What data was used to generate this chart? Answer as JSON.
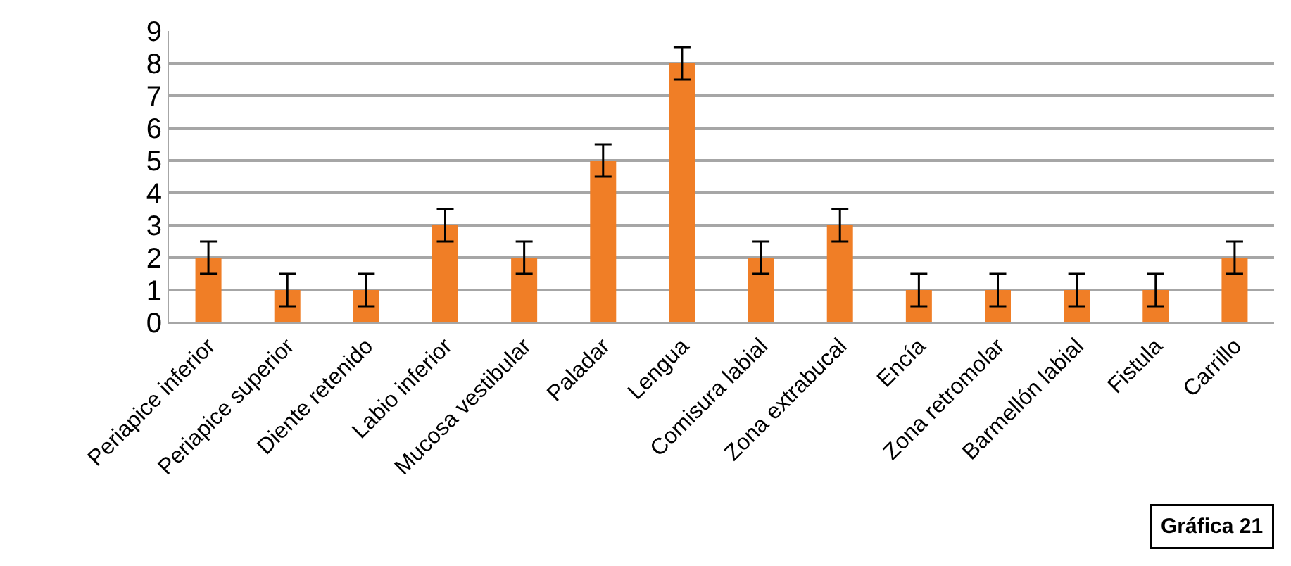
{
  "chart_data": {
    "type": "bar",
    "categories": [
      "Periapice inferior",
      "Periapice superior",
      "Diente retenido",
      "Labio inferior",
      "Mucosa vestibular",
      "Paladar",
      "Lengua",
      "Comisura labial",
      "Zona extrabucal",
      "Encía",
      "Zona retromolar",
      "Barmellón labial",
      "Fistula",
      "Carrillo"
    ],
    "values": [
      2,
      1,
      1,
      3,
      2,
      5,
      8,
      2,
      3,
      1,
      1,
      1,
      1,
      2
    ],
    "errors": [
      0.5,
      0.5,
      0.5,
      0.5,
      0.5,
      0.5,
      0.5,
      0.5,
      0.5,
      0.5,
      0.5,
      0.5,
      0.5,
      0.5
    ],
    "color": "#f07e26",
    "ylim": [
      0,
      9
    ],
    "yticks": [
      0,
      1,
      2,
      3,
      4,
      5,
      6,
      7,
      8,
      9
    ],
    "grid": "y",
    "annotations": [
      "Gráfica 21"
    ]
  }
}
